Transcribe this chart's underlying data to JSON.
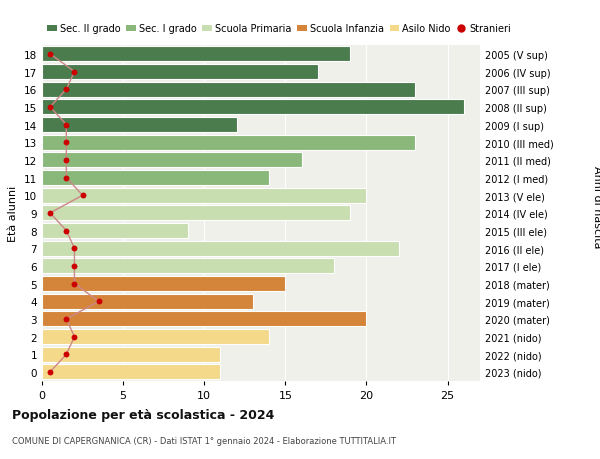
{
  "ages": [
    0,
    1,
    2,
    3,
    4,
    5,
    6,
    7,
    8,
    9,
    10,
    11,
    12,
    13,
    14,
    15,
    16,
    17,
    18
  ],
  "bar_values": [
    11,
    11,
    14,
    20,
    13,
    15,
    18,
    22,
    9,
    19,
    20,
    14,
    16,
    23,
    12,
    26,
    23,
    17,
    19
  ],
  "stranieri": [
    0.5,
    1.5,
    2.0,
    1.5,
    3.5,
    2.0,
    2.0,
    2.0,
    1.5,
    0.5,
    2.5,
    1.5,
    1.5,
    1.5,
    1.5,
    0.5,
    1.5,
    2.0,
    0.5
  ],
  "right_labels": [
    "2023 (nido)",
    "2022 (nido)",
    "2021 (nido)",
    "2020 (mater)",
    "2019 (mater)",
    "2018 (mater)",
    "2017 (I ele)",
    "2016 (II ele)",
    "2015 (III ele)",
    "2014 (IV ele)",
    "2013 (V ele)",
    "2012 (I med)",
    "2011 (II med)",
    "2010 (III med)",
    "2009 (I sup)",
    "2008 (II sup)",
    "2007 (III sup)",
    "2006 (IV sup)",
    "2005 (V sup)"
  ],
  "bar_colors": [
    "#f5d98b",
    "#f5d98b",
    "#f5d98b",
    "#d4853a",
    "#d4853a",
    "#d4853a",
    "#c8ddb0",
    "#c8ddb0",
    "#c8ddb0",
    "#c8ddb0",
    "#c8ddb0",
    "#8ab87a",
    "#8ab87a",
    "#8ab87a",
    "#4a7c4e",
    "#4a7c4e",
    "#4a7c4e",
    "#4a7c4e",
    "#4a7c4e"
  ],
  "legend_labels": [
    "Sec. II grado",
    "Sec. I grado",
    "Scuola Primaria",
    "Scuola Infanzia",
    "Asilo Nido",
    "Stranieri"
  ],
  "legend_colors": [
    "#4a7c4e",
    "#8ab87a",
    "#c8ddb0",
    "#d4853a",
    "#f5d98b",
    "#cc0000"
  ],
  "title": "Popolazione per età scolastica - 2024",
  "subtitle": "COMUNE DI CAPERGNANICA (CR) - Dati ISTAT 1° gennaio 2024 - Elaborazione TUTTITALIA.IT",
  "ylabel": "Età alunni",
  "right_ylabel": "Anni di nascita",
  "xlim": [
    0,
    27
  ],
  "xticks": [
    0,
    5,
    10,
    15,
    20,
    25
  ],
  "stranieri_color": "#cc0000",
  "line_color": "#cc8888",
  "background_color": "#ffffff",
  "plot_bg_color": "#f0f0ea"
}
